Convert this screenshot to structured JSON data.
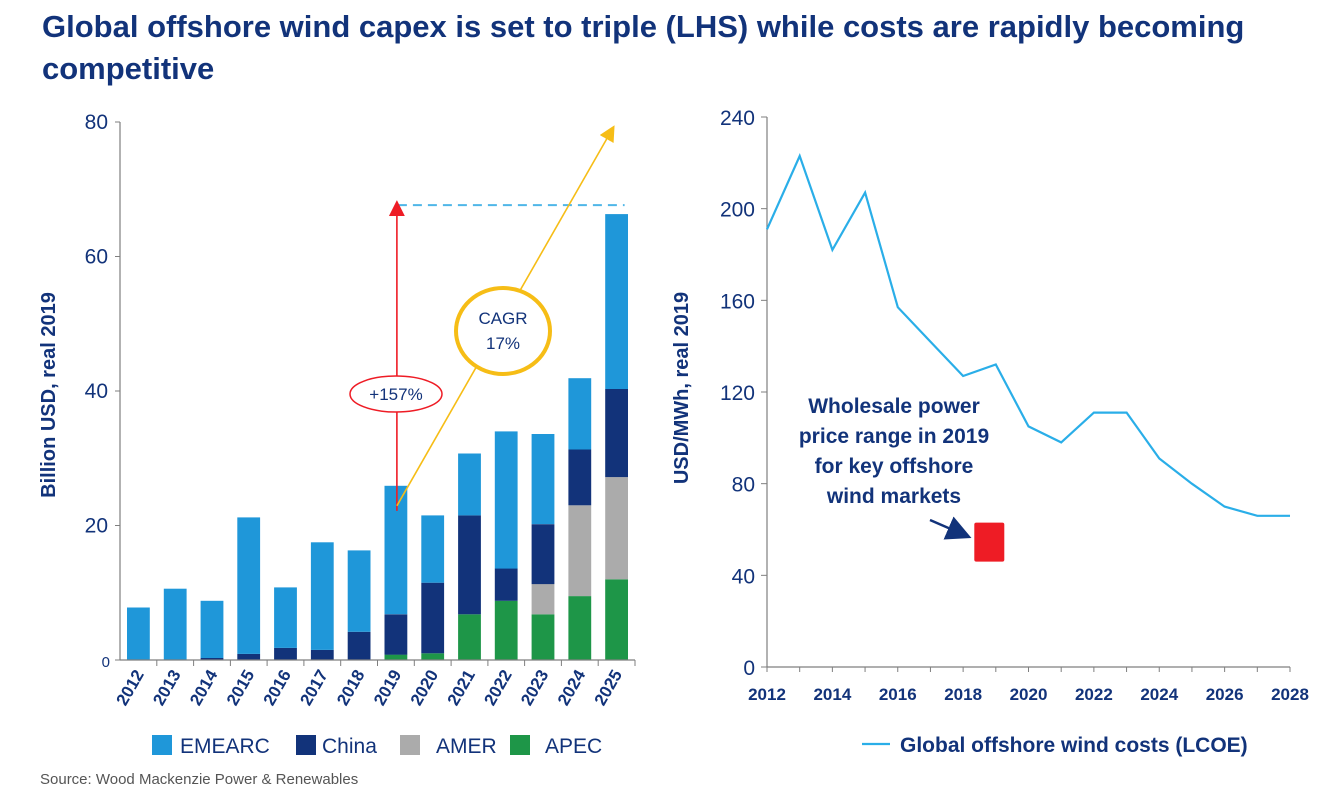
{
  "title": "Global offshore wind capex is set to triple (LHS) while costs are rapidly becoming competitive",
  "source": "Source: Wood Mackenzie Power & Renewables",
  "colors": {
    "EMEARC": "#1f97d9",
    "China": "#12337a",
    "AMER": "#ababab",
    "APEC": "#1e9648",
    "line": "#2aaee8",
    "axis_text": "#12337a",
    "red": "#ee1c25",
    "gold": "#f6bd16",
    "dashed": "#4fb6e8"
  },
  "chart_data": [
    {
      "type": "bar",
      "stacked": true,
      "categories": [
        "2012",
        "2013",
        "2014",
        "2015",
        "2016",
        "2017",
        "2018",
        "2019",
        "2020",
        "2021",
        "2022",
        "2023",
        "2024",
        "2025"
      ],
      "series": [
        {
          "name": "APEC",
          "values": [
            0,
            0,
            0,
            0,
            0,
            0,
            0,
            0.8,
            1,
            6.8,
            8.8,
            6.8,
            9.5,
            12
          ]
        },
        {
          "name": "AMER",
          "values": [
            0,
            0,
            0,
            0,
            0,
            0,
            0,
            0,
            0,
            0,
            0,
            4.5,
            13.5,
            15.2
          ]
        },
        {
          "name": "China",
          "values": [
            0,
            0,
            0.3,
            0.9,
            1.8,
            1.5,
            4.2,
            6,
            10.5,
            14.7,
            4.8,
            8.9,
            8.3,
            13.1
          ]
        },
        {
          "name": "EMEARC",
          "values": [
            7.8,
            10.6,
            8.5,
            20.3,
            9,
            16,
            12.1,
            19.1,
            10,
            9.2,
            20.4,
            13.4,
            10.6,
            26
          ]
        }
      ],
      "totals": [
        7.8,
        10.6,
        8.8,
        21.2,
        10.8,
        17.5,
        16.3,
        25.9,
        21.5,
        30.7,
        34,
        33.6,
        41.9,
        66.3
      ],
      "ylabel": "Billion USD, real 2019",
      "ylim": [
        0,
        80
      ],
      "yticks": [
        0,
        20,
        40,
        60,
        80
      ],
      "legend": [
        "EMEARC",
        "China",
        "AMER",
        "APEC"
      ],
      "legend_position": "bottom",
      "annotations": {
        "growth_label": "+157%",
        "cagr_label_line1": "CAGR",
        "cagr_label_line2": "17%"
      }
    },
    {
      "type": "line",
      "x": [
        2012,
        2013,
        2014,
        2015,
        2016,
        2017,
        2018,
        2019,
        2020,
        2021,
        2022,
        2023,
        2024,
        2025,
        2026,
        2027,
        2028
      ],
      "series": [
        {
          "name": "Global offshore wind costs (LCOE)",
          "values": [
            191,
            223,
            182,
            207,
            157,
            142,
            127,
            132,
            105,
            98,
            111,
            111,
            91,
            80,
            70,
            66,
            66
          ]
        }
      ],
      "ylabel": "USD/MWh, real 2019",
      "ylim": [
        0,
        240
      ],
      "yticks": [
        0,
        40,
        80,
        120,
        160,
        200,
        240
      ],
      "xticks": [
        2012,
        2014,
        2016,
        2018,
        2020,
        2022,
        2024,
        2026,
        2028
      ],
      "xlim": [
        2012,
        2028
      ],
      "legend_position": "bottom-right",
      "annotation": {
        "text_lines": [
          "Wholesale power",
          "price range in 2019",
          "for  key offshore",
          "wind markets"
        ],
        "range_year": 2018.8,
        "range": [
          46,
          63
        ]
      }
    }
  ]
}
